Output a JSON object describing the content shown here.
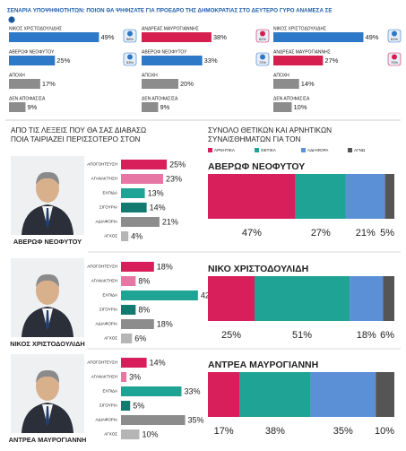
{
  "title": "ΣΕΝΑΡΙΑ ΥΠΟΨΗΦΙΟΤΗΤΩΝ: ΠΟΙΟΝ ΘΑ ΨΗΦΙΖΑΤΕ ΓΙΑ ΠΡΟΕΔΡΟ ΤΗΣ ΔΗΜΟΚΡΑΤΙΑΣ ΣΤΟ ΔΕΥΤΕΡΟ ΓΥΡΟ ΑΝΑΜΕΣΑ ΣΕ",
  "emotions_title": [
    "ΑΠΟ ΤΙΣ ΛΕΞΕΙΣ ΠΟΥ ΘΑ ΣΑΣ ΔΙΑΒΑΣΩ",
    "ΠΟΙΑ ΤΑΙΡΙΑΖΕΙ ΠΕΡΙΣΣΟΤΕΡΟ ΣΤΟΝ"
  ],
  "feelings_title": [
    "ΣΥΝΟΛΟ ΘΕΤΙΚΩΝ ΚΑΙ ΑΡΝΗΤΙΚΩΝ",
    "ΣΥΝΑΙΣΘΗΜΑΤΩΝ ΓΙΑ ΤΟΝ"
  ],
  "legend": [
    {
      "name": "ΑΡΝΗΤΙΚΑ",
      "color": "#d81e5b"
    },
    {
      "name": "ΘΕΤΙΚΑ",
      "color": "#1fa394"
    },
    {
      "name": "ΑΔΙΑΦΟΡΑ",
      "color": "#5b8fd6"
    },
    {
      "name": "ΑΓΝΩ",
      "color": "#555555"
    }
  ],
  "chart_data": [
    {
      "type": "bar",
      "number": "1",
      "categories": [
        "ΝΙΚΟΣ ΧΡΙΣΤΟΔΟΥΛΙΔΗΣ",
        "ΑΒΕΡΩΦ ΝΕΟΦΥΤΟΥ",
        "ΑΠΟΧΗ",
        "ΔΕΝ ΑΠΟΦΑΣΙΣΑ"
      ],
      "values": [
        49,
        25,
        17,
        9
      ],
      "value_labels": [
        "49%",
        "25%",
        "17%",
        "9%"
      ],
      "colors": [
        "#2e78c8",
        "#2e78c8",
        "#8c8c8c",
        "#8c8c8c"
      ],
      "badges": [
        "58%",
        "53%"
      ],
      "xlim": [
        0,
        60
      ]
    },
    {
      "type": "bar",
      "categories": [
        "ΑΝΔΡΕΑΣ ΜΑΥΡΟΓΙΑΝΝΗΣ",
        "ΑΒΕΡΩΦ ΝΕΟΦΥΤΟΥ",
        "ΑΠΟΧΗ",
        "ΔΕΝ ΑΠΟΦΑΣΙΣΑ"
      ],
      "values": [
        38,
        33,
        20,
        9
      ],
      "value_labels": [
        "38%",
        "33%",
        "20%",
        "9%"
      ],
      "colors": [
        "#d61f4f",
        "#2e78c8",
        "#8c8c8c",
        "#8c8c8c"
      ],
      "badges": [
        "62%",
        "72%"
      ],
      "xlim": [
        0,
        60
      ]
    },
    {
      "type": "bar",
      "categories": [
        "ΝΙΚΟΣ ΧΡΙΣΤΟΔΟΥΛΙΔΗΣ",
        "ΑΝΔΡΕΑΣ ΜΑΥΡΟΓΙΑΝΝΗΣ",
        "ΑΠΟΧΗ",
        "ΔΕΝ ΑΠΟΦΑΣΙΣΑ"
      ],
      "values": [
        49,
        27,
        14,
        10
      ],
      "value_labels": [
        "49%",
        "27%",
        "14%",
        "10%"
      ],
      "colors": [
        "#2e78c8",
        "#d61f4f",
        "#8c8c8c",
        "#8c8c8c"
      ],
      "badges": [
        "61%",
        "70%"
      ],
      "xlim": [
        0,
        60
      ]
    },
    {
      "type": "bar",
      "caption": "ΑΒΕΡΩΦ ΝΕΟΦΥΤΟΥ",
      "categories": [
        "ΑΠΟΓΟΗΤΕΥΣΗ",
        "ΑΓΑΝΑΚΤΗΣΗ",
        "ΕΛΠΙΔΑ",
        "ΣΙΓΟΥΡΙΑ",
        "ΑΔΙΑΦΟΡΙΑ",
        "ΑΓΧΟΣ"
      ],
      "values": [
        25,
        23,
        13,
        14,
        21,
        4
      ],
      "value_labels": [
        "25%",
        "23%",
        "13%",
        "14%",
        "21%",
        "4%"
      ],
      "colors": [
        "#d81e5b",
        "#e677a4",
        "#1fa394",
        "#137a6f",
        "#8c8c8c",
        "#b5b5b5"
      ],
      "xlim": [
        0,
        45
      ]
    },
    {
      "type": "stacked",
      "title": "ΑΒΕΡΩΦ ΝΕΟΦΥΤΟΥ",
      "values": [
        47,
        27,
        21,
        5
      ],
      "value_labels": [
        "47%",
        "27%",
        "21%",
        "5%"
      ],
      "xlim": [
        0,
        100
      ]
    },
    {
      "type": "bar",
      "caption": "ΝΙΚΟΣ ΧΡΙΣΤΟΔΟΥΛΙΔΗ",
      "categories": [
        "ΑΠΟΓΟΗΤΕΥΣΗ",
        "ΑΓΑΝΑΚΤΗΣΗ",
        "ΕΛΠΙΔΑ",
        "ΣΙΓΟΥΡΙΑ",
        "ΑΔΙΑΦΟΡΙΑ",
        "ΑΓΧΟΣ"
      ],
      "values": [
        18,
        8,
        42,
        8,
        18,
        6
      ],
      "value_labels": [
        "18%",
        "8%",
        "42%",
        "8%",
        "18%",
        "6%"
      ],
      "colors": [
        "#d81e5b",
        "#e677a4",
        "#1fa394",
        "#137a6f",
        "#8c8c8c",
        "#b5b5b5"
      ],
      "xlim": [
        0,
        45
      ]
    },
    {
      "type": "stacked",
      "title": "ΝΙΚΟ ΧΡΙΣΤΟΔΟΥΛΙΔΗ",
      "values": [
        25,
        51,
        18,
        6
      ],
      "value_labels": [
        "25%",
        "51%",
        "18%",
        "6%"
      ],
      "xlim": [
        0,
        100
      ]
    },
    {
      "type": "bar",
      "caption": "ΑΝΤΡΕΑ ΜΑΥΡΟΓΙΑΝΝΗ",
      "categories": [
        "ΑΠΟΓΟΗΤΕΥΣΗ",
        "ΑΓΑΝΑΚΤΗΣΗ",
        "ΕΛΠΙΔΑ",
        "ΣΙΓΟΥΡΙΑ",
        "ΑΔΙΑΦΟΡΙΑ",
        "ΑΓΧΟΣ"
      ],
      "values": [
        14,
        3,
        33,
        5,
        35,
        10
      ],
      "value_labels": [
        "14%",
        "3%",
        "33%",
        "5%",
        "35%",
        "10%"
      ],
      "colors": [
        "#d81e5b",
        "#e677a4",
        "#1fa394",
        "#137a6f",
        "#8c8c8c",
        "#b5b5b5"
      ],
      "xlim": [
        0,
        45
      ]
    },
    {
      "type": "stacked",
      "title": "ΑΝΤΡΕΑ ΜΑΥΡΟΓΙΑΝΝΗ",
      "values": [
        17,
        38,
        35,
        10
      ],
      "value_labels": [
        "17%",
        "38%",
        "35%",
        "10%"
      ],
      "xlim": [
        0,
        100
      ]
    }
  ]
}
